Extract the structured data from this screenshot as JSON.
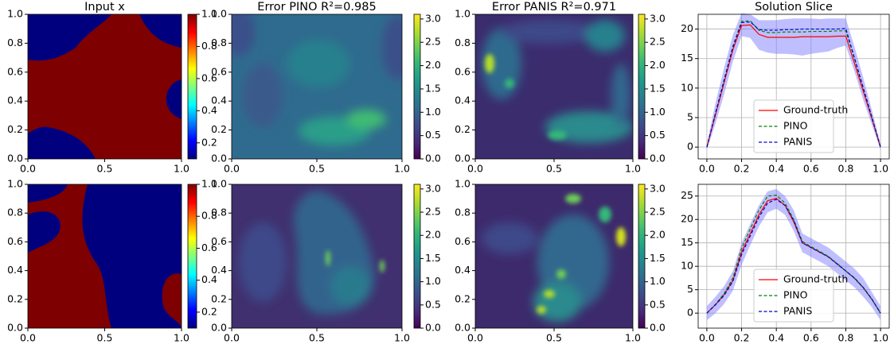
{
  "chart_data": [
    {
      "type": "heatmap",
      "title": "Input x",
      "colormap": "jet",
      "clim": [
        0.1,
        1.0
      ],
      "cticks": [
        0.2,
        0.4,
        0.6,
        0.8,
        {
          "value": 1.0,
          "label": "1.0"
        }
      ],
      "xlim": [
        0,
        1
      ],
      "ylim": [
        0,
        1
      ],
      "xticks": [
        {
          "value": 0,
          "label": "0.0"
        },
        0.5,
        {
          "value": 1,
          "label": "1.0"
        }
      ],
      "yticks": [
        {
          "value": 0,
          "label": "0.0"
        },
        0.2,
        0.4,
        0.6,
        0.8,
        {
          "value": 1,
          "label": "1.0"
        }
      ]
    },
    {
      "type": "heatmap",
      "title": "Error PINO R²=0.985",
      "colormap": "viridis",
      "clim": [
        0,
        3.1
      ],
      "cticks": [
        {
          "value": 0,
          "label": "0.0"
        },
        0.5,
        {
          "value": 1,
          "label": "1.0"
        },
        1.5,
        {
          "value": 2,
          "label": "2.0"
        },
        2.5,
        {
          "value": 3,
          "label": "3.0"
        }
      ],
      "xlim": [
        0,
        1
      ],
      "ylim": [
        0,
        1
      ],
      "xticks": [
        {
          "value": 0,
          "label": "0.0"
        },
        0.5,
        {
          "value": 1,
          "label": "1.0"
        }
      ],
      "yticks": [
        {
          "value": 0,
          "label": "0.0"
        },
        0.2,
        0.4,
        0.6,
        0.8,
        {
          "value": 1,
          "label": "1.0"
        }
      ]
    },
    {
      "type": "heatmap",
      "title": "Error PANIS R²=0.971",
      "colormap": "viridis",
      "clim": [
        0,
        3.1
      ],
      "cticks": [
        {
          "value": 0,
          "label": "0.0"
        },
        0.5,
        {
          "value": 1,
          "label": "1.0"
        },
        1.5,
        {
          "value": 2,
          "label": "2.0"
        },
        2.5,
        {
          "value": 3,
          "label": "3.0"
        }
      ],
      "xlim": [
        0,
        1
      ],
      "ylim": [
        0,
        1
      ],
      "xticks": [
        {
          "value": 0,
          "label": "0.0"
        },
        0.5,
        {
          "value": 1,
          "label": "1.0"
        }
      ],
      "yticks": [
        {
          "value": 0,
          "label": "0.0"
        },
        0.2,
        0.4,
        0.6,
        0.8,
        {
          "value": 1,
          "label": "1.0"
        }
      ]
    },
    {
      "type": "line",
      "title": "Solution Slice",
      "grid": true,
      "legend": "lower center",
      "xlim": [
        -0.05,
        1.05
      ],
      "ylim": [
        -2.0,
        22.5
      ],
      "xticks": [
        {
          "value": 0,
          "label": "0.0"
        },
        0.2,
        0.4,
        0.6,
        0.8,
        {
          "value": 1,
          "label": "1.0"
        }
      ],
      "yticks": [
        0,
        5,
        10,
        15,
        20
      ],
      "x": [
        0,
        0.05,
        0.1,
        0.15,
        0.2,
        0.25,
        0.3,
        0.35,
        0.4,
        0.45,
        0.5,
        0.55,
        0.6,
        0.65,
        0.7,
        0.75,
        0.8,
        0.85,
        0.9,
        0.95,
        1.0
      ],
      "band": {
        "color": "#8080ff",
        "upper": [
          0.5,
          7.5,
          13.5,
          19,
          22.7,
          22.5,
          21.5,
          21.5,
          21.5,
          21.7,
          21.8,
          21.8,
          21.8,
          21.7,
          21.8,
          21.8,
          21.8,
          17,
          11.8,
          6.3,
          0.5
        ],
        "lower": [
          -0.5,
          4,
          9,
          14.5,
          18.8,
          18.5,
          16.5,
          16,
          15.8,
          15.8,
          15.7,
          15.5,
          15.8,
          16,
          16.2,
          16.8,
          17.2,
          12.8,
          8,
          3.8,
          -0.5
        ]
      },
      "series": [
        {
          "name": "Ground-truth",
          "color": "#ff0000",
          "dash": false,
          "values": [
            0,
            5.5,
            11,
            16.5,
            20.6,
            20.7,
            19.1,
            18.6,
            18.6,
            18.6,
            18.6,
            18.7,
            18.7,
            18.7,
            18.7,
            18.8,
            18.8,
            14.2,
            9.5,
            4.8,
            0
          ]
        },
        {
          "name": "PINO",
          "color": "#008000",
          "dash": true,
          "values": [
            0,
            5.8,
            11.5,
            17.1,
            21.3,
            21.4,
            19.8,
            19.4,
            19.4,
            19.5,
            19.5,
            19.5,
            19.6,
            19.6,
            19.6,
            19.7,
            19.7,
            15,
            10,
            5,
            0
          ]
        },
        {
          "name": "PANIS",
          "color": "#0000cd",
          "dash": true,
          "values": [
            0,
            5.7,
            11.3,
            16.9,
            21.1,
            21.2,
            19.9,
            19.8,
            19.8,
            19.9,
            19.9,
            20,
            20,
            20,
            20,
            20,
            20.1,
            15.1,
            10.1,
            5.1,
            0
          ]
        }
      ]
    },
    {
      "type": "heatmap",
      "colormap": "jet",
      "clim": [
        0.1,
        1.0
      ],
      "cticks": [
        0.2,
        0.4,
        0.6,
        0.8,
        {
          "value": 1.0,
          "label": "1.0"
        }
      ],
      "xlim": [
        0,
        1
      ],
      "ylim": [
        0,
        1
      ],
      "xticks": [
        {
          "value": 0,
          "label": "0.0"
        },
        0.5,
        {
          "value": 1,
          "label": "1.0"
        }
      ],
      "yticks": [
        {
          "value": 0,
          "label": "0.0"
        },
        0.2,
        0.4,
        0.6,
        0.8,
        {
          "value": 1,
          "label": "1.0"
        }
      ]
    },
    {
      "type": "heatmap",
      "colormap": "viridis",
      "clim": [
        0,
        3.1
      ],
      "cticks": [
        {
          "value": 0,
          "label": "0.0"
        },
        0.5,
        {
          "value": 1,
          "label": "1.0"
        },
        1.5,
        {
          "value": 2,
          "label": "2.0"
        },
        2.5,
        {
          "value": 3,
          "label": "3.0"
        }
      ],
      "xlim": [
        0,
        1
      ],
      "ylim": [
        0,
        1
      ],
      "xticks": [
        {
          "value": 0,
          "label": "0.0"
        },
        0.5,
        {
          "value": 1,
          "label": "1.0"
        }
      ],
      "yticks": [
        {
          "value": 0,
          "label": "0.0"
        },
        0.2,
        0.4,
        0.6,
        0.8,
        {
          "value": 1,
          "label": "1.0"
        }
      ]
    },
    {
      "type": "heatmap",
      "colormap": "viridis",
      "clim": [
        0,
        3.1
      ],
      "cticks": [
        {
          "value": 0,
          "label": "0.0"
        },
        0.5,
        {
          "value": 1,
          "label": "1.0"
        },
        1.5,
        {
          "value": 2,
          "label": "2.0"
        },
        2.5,
        {
          "value": 3,
          "label": "3.0"
        }
      ],
      "xlim": [
        0,
        1
      ],
      "ylim": [
        0,
        1
      ],
      "xticks": [
        {
          "value": 0,
          "label": "0.0"
        },
        0.5,
        {
          "value": 1,
          "label": "1.0"
        }
      ],
      "yticks": [
        {
          "value": 0,
          "label": "0.0"
        },
        0.2,
        0.4,
        0.6,
        0.8,
        {
          "value": 1,
          "label": "1.0"
        }
      ]
    },
    {
      "type": "line",
      "grid": true,
      "legend": "lower center",
      "xlim": [
        -0.05,
        1.05
      ],
      "ylim": [
        -3.2,
        27.5
      ],
      "xticks": [
        {
          "value": 0,
          "label": "0.0"
        },
        0.2,
        0.4,
        0.6,
        0.8,
        {
          "value": 1,
          "label": "1.0"
        }
      ],
      "yticks": [
        0,
        5,
        10,
        15,
        20,
        25
      ],
      "x": [
        0,
        0.05,
        0.1,
        0.15,
        0.2,
        0.25,
        0.3,
        0.35,
        0.4,
        0.45,
        0.5,
        0.55,
        0.6,
        0.65,
        0.7,
        0.75,
        0.8,
        0.85,
        0.9,
        0.95,
        1.0
      ],
      "band": {
        "color": "#8080ff",
        "upper": [
          1.5,
          3.5,
          5.8,
          9,
          15,
          19,
          23,
          26,
          26.5,
          25,
          22,
          17,
          16,
          15,
          14,
          12.5,
          11,
          9.5,
          7.5,
          4.5,
          1.5
        ],
        "lower": [
          -1.5,
          0,
          2,
          4.8,
          10.3,
          14.5,
          18.5,
          21.5,
          22.3,
          21,
          17.6,
          13,
          12,
          11,
          10,
          8.5,
          7,
          5.5,
          3.5,
          1.3,
          -1.5
        ]
      },
      "series": [
        {
          "name": "Ground-truth",
          "color": "#ff0000",
          "dash": false,
          "values": [
            0,
            1.8,
            4,
            7,
            13,
            17,
            21,
            24,
            24.5,
            23,
            19.5,
            15,
            14,
            13,
            12,
            10.5,
            9,
            7.5,
            5.5,
            3,
            0
          ]
        },
        {
          "name": "PINO",
          "color": "#008000",
          "dash": true,
          "values": [
            0,
            1.9,
            4.2,
            7.5,
            13.8,
            18,
            22,
            25,
            25.2,
            23.5,
            20,
            15.3,
            14.2,
            13.2,
            12.1,
            10.6,
            9,
            7.4,
            5.4,
            2.9,
            0
          ]
        },
        {
          "name": "PANIS",
          "color": "#0000cd",
          "dash": true,
          "values": [
            0,
            1.8,
            3.8,
            6.8,
            12.5,
            16.5,
            20.5,
            23.5,
            24.3,
            23,
            19.8,
            15,
            14,
            13,
            12,
            10.5,
            9,
            7.5,
            5.5,
            3,
            0
          ]
        }
      ]
    }
  ]
}
